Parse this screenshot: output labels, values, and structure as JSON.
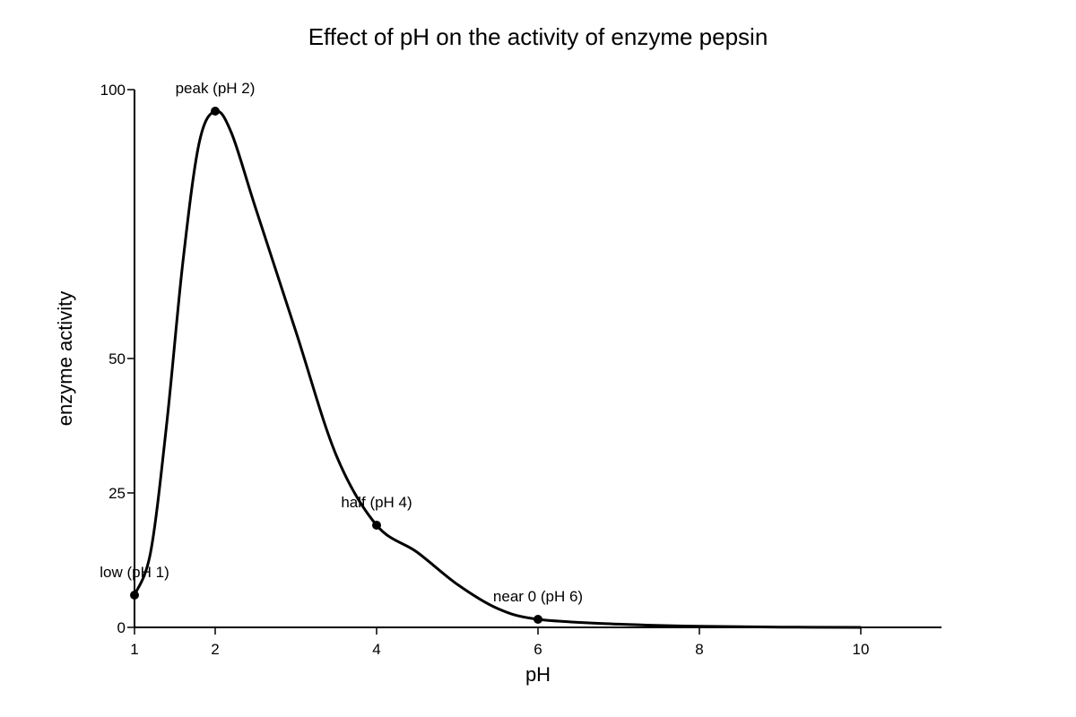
{
  "chart_data": {
    "type": "line",
    "title": "Effect of pH on the activity of enzyme pepsin",
    "xlabel": "pH",
    "ylabel": "enzyme activity",
    "xlim": [
      1,
      11
    ],
    "ylim": [
      0,
      100
    ],
    "x_ticks": [
      1,
      2,
      4,
      6,
      8,
      10
    ],
    "y_ticks": [
      0,
      25,
      50,
      100
    ],
    "grid": false,
    "legend": "none",
    "line_color": "#000000",
    "series": [
      {
        "x": [
          1,
          1.2,
          1.4,
          1.6,
          1.8,
          2,
          2.2,
          2.5,
          3,
          3.5,
          4,
          4.5,
          5,
          5.5,
          6,
          7,
          8,
          9,
          10
        ],
        "y": [
          6,
          14,
          38,
          68,
          90,
          96,
          92,
          78,
          55,
          32,
          19,
          14,
          8,
          3.5,
          1.5,
          0.6,
          0.2,
          0.05,
          0
        ]
      }
    ],
    "highlighted_points": [
      {
        "x": 1,
        "y": 6,
        "label": "low (pH 1)"
      },
      {
        "x": 2,
        "y": 96,
        "label": "peak (pH 2)"
      },
      {
        "x": 4,
        "y": 19,
        "label": "half (pH 4)"
      },
      {
        "x": 6,
        "y": 1.5,
        "label": "near 0 (pH 6)"
      }
    ]
  }
}
